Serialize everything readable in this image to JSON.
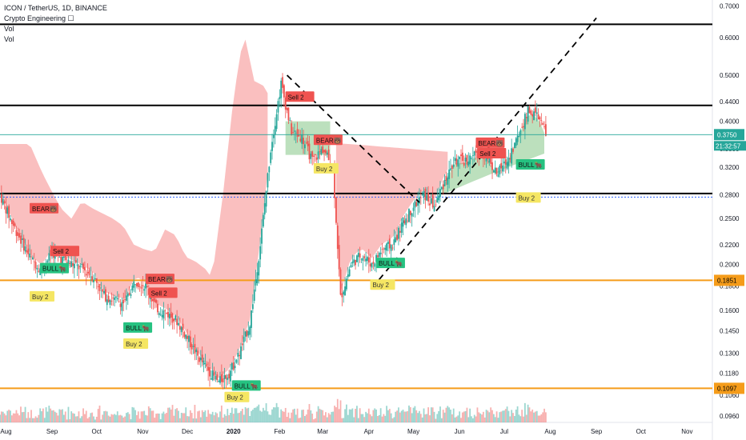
{
  "header": {
    "symbol": "ICON / TetherUS, 1D, BINANCE",
    "indicator": "Crypto Engineering ☐",
    "vol_1": "Vol",
    "vol_2": "Vol"
  },
  "colors": {
    "up": "#26a69a",
    "down": "#ef5350",
    "cloud_bear": "#f8a9a9",
    "cloud_bull": "#a5d6a7",
    "orange": "#f59c1a",
    "black": "#000000",
    "price_line": "#26a69a",
    "dotted": "#2962ff",
    "axis_text": "#131722"
  },
  "chart_data": {
    "type": "candlestick",
    "title": "ICON / TetherUS, 1D, BINANCE",
    "y_scale": "log",
    "ylim": [
      0.093,
      0.72
    ],
    "y_ticks": [
      "0.7000",
      "0.6000",
      "0.5000",
      "0.4400",
      "0.4000",
      "0.3500",
      "0.3200",
      "0.2800",
      "0.2500",
      "0.2200",
      "0.2000",
      "0.1800",
      "0.1600",
      "0.1450",
      "0.1300",
      "0.1180",
      "0.1060",
      "0.0960"
    ],
    "x_ticks": [
      "Aug",
      "Sep",
      "Oct",
      "Nov",
      "Dec",
      "2020",
      "Feb",
      "Mar",
      "Apr",
      "May",
      "Jun",
      "Jul",
      "Aug",
      "Sep",
      "Oct",
      "Nov"
    ],
    "x_range": [
      "2019-07-28",
      "2020-11-18"
    ],
    "last_price": "0.3750",
    "countdown": "21:32:57",
    "horizontal_levels": [
      {
        "label": "",
        "value": 0.64,
        "color": "#000000"
      },
      {
        "label": "",
        "value": 0.432,
        "color": "#000000"
      },
      {
        "label": "",
        "value": 0.282,
        "color": "#000000"
      },
      {
        "label": "0.1851",
        "value": 0.1851,
        "color": "#f59c1a"
      },
      {
        "label": "0.1097",
        "value": 0.1097,
        "color": "#f59c1a"
      }
    ],
    "dotted_level": 0.277,
    "close_series": {
      "dates": [
        "2019-07-28",
        "2019-08-05",
        "2019-08-12",
        "2019-08-18",
        "2019-08-25",
        "2019-09-01",
        "2019-09-08",
        "2019-09-15",
        "2019-09-22",
        "2019-09-29",
        "2019-10-06",
        "2019-10-13",
        "2019-10-20",
        "2019-10-27",
        "2019-11-03",
        "2019-11-10",
        "2019-11-17",
        "2019-11-24",
        "2019-12-01",
        "2019-12-08",
        "2019-12-15",
        "2019-12-22",
        "2019-12-29",
        "2020-01-05",
        "2020-01-12",
        "2020-01-19",
        "2020-01-26",
        "2020-02-02",
        "2020-02-09",
        "2020-02-16",
        "2020-02-23",
        "2020-03-01",
        "2020-03-08",
        "2020-03-13",
        "2020-03-20",
        "2020-03-27",
        "2020-04-03",
        "2020-04-10",
        "2020-04-17",
        "2020-04-24",
        "2020-05-01",
        "2020-05-08",
        "2020-05-15",
        "2020-05-22",
        "2020-05-29",
        "2020-06-05",
        "2020-06-12",
        "2020-06-19",
        "2020-06-26",
        "2020-07-03",
        "2020-07-10",
        "2020-07-17",
        "2020-07-24",
        "2020-07-29"
      ],
      "values": [
        0.28,
        0.245,
        0.222,
        0.205,
        0.195,
        0.212,
        0.205,
        0.2,
        0.195,
        0.188,
        0.172,
        0.168,
        0.166,
        0.185,
        0.18,
        0.162,
        0.158,
        0.152,
        0.14,
        0.128,
        0.12,
        0.113,
        0.118,
        0.13,
        0.15,
        0.22,
        0.35,
        0.48,
        0.38,
        0.37,
        0.33,
        0.35,
        0.32,
        0.17,
        0.2,
        0.21,
        0.2,
        0.215,
        0.22,
        0.245,
        0.265,
        0.28,
        0.265,
        0.3,
        0.33,
        0.33,
        0.34,
        0.34,
        0.31,
        0.33,
        0.37,
        0.42,
        0.41,
        0.375
      ]
    },
    "signals": [
      {
        "text": "BEAR🐻",
        "type": "bear",
        "date": "2019-08-18",
        "value": 0.262
      },
      {
        "text": "Sell 2",
        "type": "bear",
        "date": "2019-09-01",
        "value": 0.213
      },
      {
        "text": "BULL🐂",
        "type": "bull",
        "date": "2019-08-25",
        "value": 0.196
      },
      {
        "text": "Buy 2",
        "type": "buy",
        "date": "2019-08-18",
        "value": 0.171
      },
      {
        "text": "BEAR🐻",
        "type": "bear",
        "date": "2019-11-04",
        "value": 0.186
      },
      {
        "text": "Sell 2",
        "type": "bear",
        "date": "2019-11-06",
        "value": 0.174
      },
      {
        "text": "BULL🐂",
        "type": "bull",
        "date": "2019-10-20",
        "value": 0.147
      },
      {
        "text": "Buy 2",
        "type": "buy",
        "date": "2019-10-20",
        "value": 0.136
      },
      {
        "text": "BULL🐂",
        "type": "bull",
        "date": "2020-01-01",
        "value": 0.111
      },
      {
        "text": "Buy 2",
        "type": "buy",
        "date": "2019-12-27",
        "value": 0.105
      },
      {
        "text": "Sell 2",
        "type": "bear",
        "date": "2020-02-06",
        "value": 0.45
      },
      {
        "text": "BEAR🐻",
        "type": "bear",
        "date": "2020-02-25",
        "value": 0.365
      },
      {
        "text": "Buy 2",
        "type": "buy",
        "date": "2020-02-25",
        "value": 0.318
      },
      {
        "text": "BULL🐂",
        "type": "bull",
        "date": "2020-04-07",
        "value": 0.201
      },
      {
        "text": "Buy 2",
        "type": "buy",
        "date": "2020-04-03",
        "value": 0.181
      },
      {
        "text": "BEAR🐻",
        "type": "bear",
        "date": "2020-06-13",
        "value": 0.36
      },
      {
        "text": "Sell 2",
        "type": "bear",
        "date": "2020-06-14",
        "value": 0.342
      },
      {
        "text": "BULL🐂",
        "type": "bull",
        "date": "2020-07-10",
        "value": 0.324
      },
      {
        "text": "Buy 2",
        "type": "buy",
        "date": "2020-07-10",
        "value": 0.276
      }
    ]
  }
}
